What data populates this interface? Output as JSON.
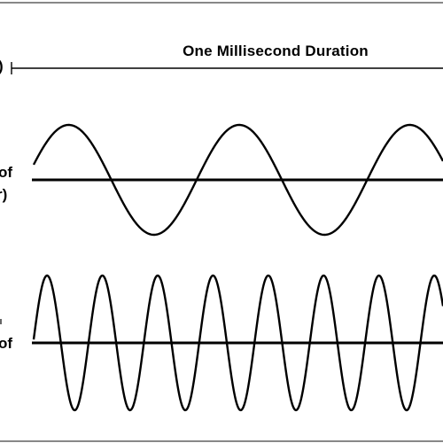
{
  "duration": {
    "title": "One Millisecond Duration",
    "left_fragment": ")"
  },
  "low_frequency": {
    "label_line1": "of",
    "label_line2": "r)",
    "cycles_shown": 2.4,
    "amplitude_fraction": 1.0
  },
  "high_frequency": {
    "label_line1": "of",
    "cycles_shown": 7.4,
    "amplitude_fraction": 1.0
  },
  "colors": {
    "ink": "#000000",
    "frame": "#888888",
    "background": "#ffffff"
  }
}
